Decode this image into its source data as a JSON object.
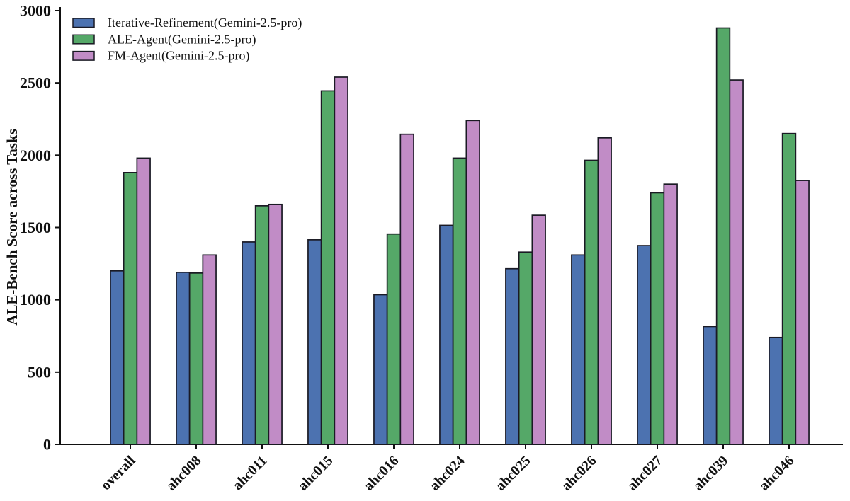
{
  "chart_data": {
    "type": "bar",
    "title": "",
    "xlabel": "",
    "ylabel": "ALE-Bench Score across Tasks",
    "ylim": [
      0,
      3000
    ],
    "yticks": [
      0,
      500,
      1000,
      1500,
      2000,
      2500,
      3000
    ],
    "grid": false,
    "legend_position": "upper-left",
    "categories": [
      "overall",
      "ahc008",
      "ahc011",
      "ahc015",
      "ahc016",
      "ahc024",
      "ahc025",
      "ahc026",
      "ahc027",
      "ahc039",
      "ahc046"
    ],
    "series": [
      {
        "name": "Iterative-Refinement(Gemini-2.5-pro)",
        "color": "#4C72B0",
        "values": [
          1200,
          1190,
          1400,
          1415,
          1035,
          1515,
          1215,
          1310,
          1375,
          815,
          740
        ]
      },
      {
        "name": "ALE-Agent(Gemini-2.5-pro)",
        "color": "#55A868",
        "values": [
          1880,
          1185,
          1650,
          2445,
          1455,
          1980,
          1330,
          1965,
          1740,
          2880,
          2150
        ]
      },
      {
        "name": "FM-Agent(Gemini-2.5-pro)",
        "color": "#C18CC6",
        "values": [
          1980,
          1310,
          1660,
          2540,
          2145,
          2240,
          1585,
          2120,
          1800,
          2520,
          1825
        ]
      }
    ],
    "colors": {
      "bar_edge": "#1A1A24",
      "axis": "#111111",
      "background": "#FFFFFF"
    }
  }
}
